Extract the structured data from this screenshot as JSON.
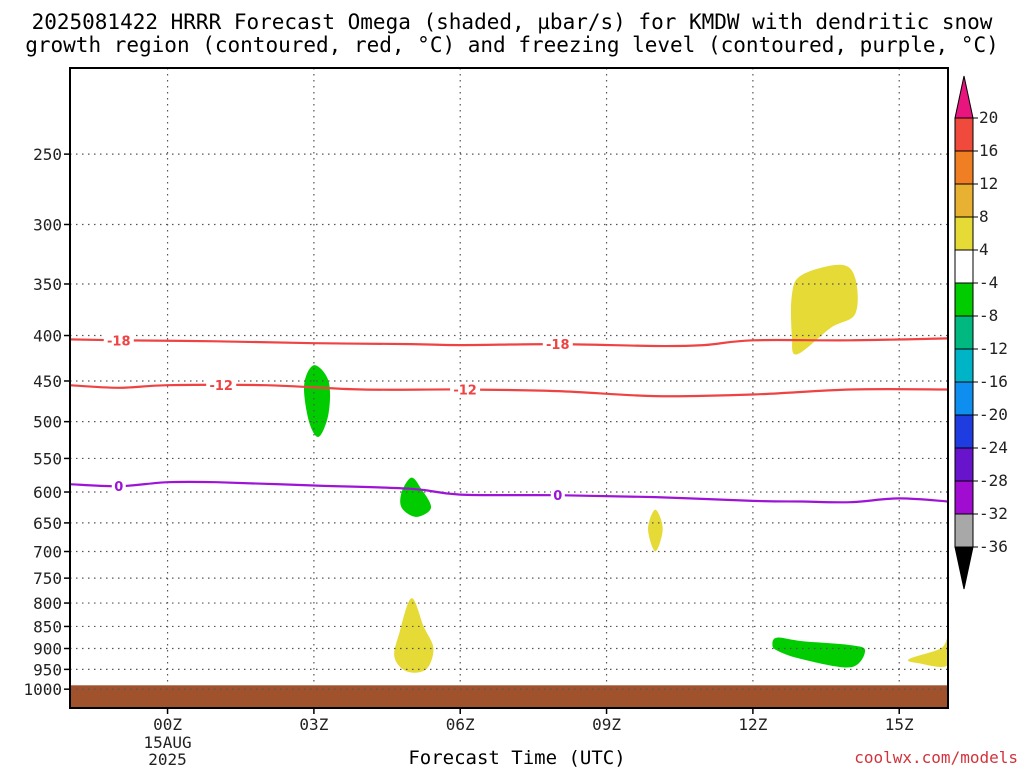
{
  "title_line1": "2025081422 HRRR Forecast Omega (shaded, µbar/s) for KMDW with dendritic snow",
  "title_line2": "growth region (contoured, red, °C) and freezing level (contoured, purple, °C)",
  "xlabel": "Forecast Time (UTC)",
  "credit": "coolwx.com/models",
  "chart_data": {
    "type": "time-height cross section",
    "x": {
      "unit": "hours from 2025-08-14 22Z",
      "range": [
        0,
        18
      ],
      "ticks": [
        {
          "h": 2,
          "label": "00Z",
          "sub": [
            "15AUG",
            "2025"
          ]
        },
        {
          "h": 5,
          "label": "03Z"
        },
        {
          "h": 8,
          "label": "06Z"
        },
        {
          "h": 11,
          "label": "09Z"
        },
        {
          "h": 14,
          "label": "12Z"
        },
        {
          "h": 17,
          "label": "15Z"
        }
      ]
    },
    "y": {
      "unit": "hPa",
      "scale": "log",
      "range": [
        1050,
        200
      ],
      "ticks": [
        250,
        300,
        350,
        400,
        450,
        500,
        550,
        600,
        650,
        700,
        750,
        800,
        850,
        900,
        950,
        1000
      ]
    },
    "grid": true,
    "terrain_top_hPa": 990,
    "contours": [
      {
        "label": "-18",
        "color": "#ef4343",
        "labels_at": [
          1.0,
          10.0
        ],
        "points": [
          [
            0,
            404
          ],
          [
            1,
            405
          ],
          [
            3,
            406
          ],
          [
            5,
            408
          ],
          [
            7,
            409
          ],
          [
            8,
            410
          ],
          [
            10,
            409
          ],
          [
            12,
            411
          ],
          [
            13,
            410
          ],
          [
            14,
            405
          ],
          [
            16,
            405
          ],
          [
            18,
            403
          ]
        ]
      },
      {
        "label": "-12",
        "color": "#ef4343",
        "labels_at": [
          3.1,
          8.1
        ],
        "points": [
          [
            0,
            455
          ],
          [
            1,
            458
          ],
          [
            2,
            455
          ],
          [
            4,
            455
          ],
          [
            6,
            460
          ],
          [
            8,
            460
          ],
          [
            10,
            462
          ],
          [
            12,
            468
          ],
          [
            14,
            466
          ],
          [
            16,
            460
          ],
          [
            18,
            460
          ]
        ]
      },
      {
        "label": "0",
        "color": "#9d14d7",
        "labels_at": [
          1.0,
          10.0
        ],
        "points": [
          [
            0,
            588
          ],
          [
            1,
            591
          ],
          [
            2,
            585
          ],
          [
            3,
            585
          ],
          [
            5,
            590
          ],
          [
            7,
            595
          ],
          [
            8,
            604
          ],
          [
            10,
            605
          ],
          [
            12,
            608
          ],
          [
            14,
            614
          ],
          [
            15,
            615
          ],
          [
            16,
            616
          ],
          [
            17,
            610
          ],
          [
            18,
            615
          ]
        ]
      }
    ],
    "shaded_regions": [
      {
        "range": "-8 to -4",
        "color": "#00cc00",
        "points": [
          [
            5.0,
            432
          ],
          [
            5.3,
            450
          ],
          [
            5.3,
            490
          ],
          [
            5.1,
            520
          ],
          [
            4.9,
            500
          ],
          [
            4.8,
            455
          ]
        ]
      },
      {
        "range": "-8 to -4",
        "color": "#00cc00",
        "points": [
          [
            7.0,
            578
          ],
          [
            7.2,
            595
          ],
          [
            7.4,
            625
          ],
          [
            7.1,
            640
          ],
          [
            6.8,
            625
          ],
          [
            6.8,
            600
          ]
        ]
      },
      {
        "range": "-8 to -4",
        "color": "#00cc00",
        "points": [
          [
            14.5,
            875
          ],
          [
            15.0,
            883
          ],
          [
            16.0,
            892
          ],
          [
            16.3,
            905
          ],
          [
            16.0,
            945
          ],
          [
            15.0,
            925
          ],
          [
            14.5,
            905
          ],
          [
            14.4,
            890
          ]
        ]
      },
      {
        "range": "4 to 8",
        "color": "#e6da36",
        "points": [
          [
            15.0,
            342
          ],
          [
            15.8,
            333
          ],
          [
            16.1,
            345
          ],
          [
            16.1,
            378
          ],
          [
            15.6,
            392
          ],
          [
            14.9,
            420
          ],
          [
            14.8,
            400
          ],
          [
            14.8,
            360
          ]
        ]
      },
      {
        "range": "4 to 8",
        "color": "#e6da36",
        "points": [
          [
            12.0,
            628
          ],
          [
            12.15,
            660
          ],
          [
            12.0,
            700
          ],
          [
            11.85,
            660
          ]
        ]
      },
      {
        "range": "4 to 8",
        "color": "#e6da36",
        "points": [
          [
            7.0,
            790
          ],
          [
            7.25,
            850
          ],
          [
            7.45,
            900
          ],
          [
            7.3,
            950
          ],
          [
            6.9,
            955
          ],
          [
            6.65,
            920
          ],
          [
            6.75,
            865
          ]
        ]
      },
      {
        "range": "4 to 8",
        "color": "#e6da36",
        "points": [
          [
            17.85,
            900
          ],
          [
            18.0,
            875
          ],
          [
            18.0,
            940
          ],
          [
            17.4,
            935
          ],
          [
            17.2,
            925
          ]
        ]
      }
    ],
    "colorbar": {
      "unit": "µbar/s",
      "labels": [
        "20",
        "16",
        "12",
        "8",
        "4",
        "-4",
        "-8",
        "-12",
        "-16",
        "-20",
        "-24",
        "-28",
        "-32",
        "-36"
      ],
      "bins": [
        {
          "range": ">20",
          "color": "#e9157e"
        },
        {
          "range": "16 to 20",
          "color": "#f04a3c"
        },
        {
          "range": "12 to 16",
          "color": "#f07f24"
        },
        {
          "range": "8 to 12",
          "color": "#e9b131"
        },
        {
          "range": "4 to 8",
          "color": "#e6da36"
        },
        {
          "range": "-4 to 4",
          "color": "#ffffff"
        },
        {
          "range": "-8 to -4",
          "color": "#00cc00"
        },
        {
          "range": "-12 to -8",
          "color": "#00b880"
        },
        {
          "range": "-16 to -12",
          "color": "#00b4c8"
        },
        {
          "range": "-20 to -16",
          "color": "#0e8ff0"
        },
        {
          "range": "-24 to -20",
          "color": "#1e3ce0"
        },
        {
          "range": "-28 to -24",
          "color": "#6814cc"
        },
        {
          "range": "-32 to -28",
          "color": "#a00cd0"
        },
        {
          "range": "-36 to -32",
          "color": "#a8a8a8"
        },
        {
          "range": "<-36",
          "color": "#000000"
        }
      ]
    }
  }
}
